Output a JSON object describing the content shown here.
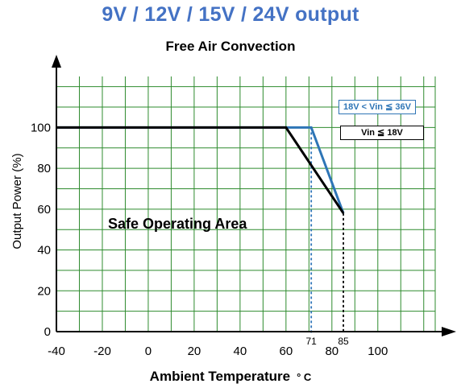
{
  "header": {
    "title": "9V / 12V / 15V / 24V output",
    "subtitle": "Free Air Convection"
  },
  "colors": {
    "title": "#4472c4",
    "grid": "#2e8b2e",
    "series_high_vin": "#2e75b6",
    "series_low_vin": "#000000"
  },
  "annotation": {
    "area_label": "Safe Operating Area"
  },
  "chart_data": {
    "type": "line",
    "title": "Free Air Convection",
    "xlabel": "Ambient Temperature",
    "xlabel_unit": "° C",
    "ylabel": "Output Power (%)",
    "xlim": [
      -40,
      125
    ],
    "ylim": [
      0,
      125
    ],
    "x_ticks": [
      -40,
      -20,
      0,
      20,
      40,
      60,
      80,
      100
    ],
    "y_ticks": [
      0,
      20,
      40,
      60,
      80,
      100
    ],
    "x_marker_ticks": [
      71,
      85
    ],
    "grid": true,
    "legend_placement": "top-right",
    "series": [
      {
        "name": "18V < Vin ≦ 36V",
        "color": "#2e75b6",
        "points": [
          [
            -40,
            100
          ],
          [
            71,
            100
          ],
          [
            85,
            58
          ]
        ]
      },
      {
        "name": "Vin ≦ 18V",
        "color": "#000000",
        "points": [
          [
            -40,
            100
          ],
          [
            60,
            100
          ],
          [
            85,
            58
          ]
        ]
      }
    ],
    "reference_lines": [
      {
        "x": 71,
        "color": "#2e75b6",
        "style": "dashed"
      },
      {
        "x": 85,
        "color": "#000000",
        "style": "dashed"
      }
    ]
  }
}
